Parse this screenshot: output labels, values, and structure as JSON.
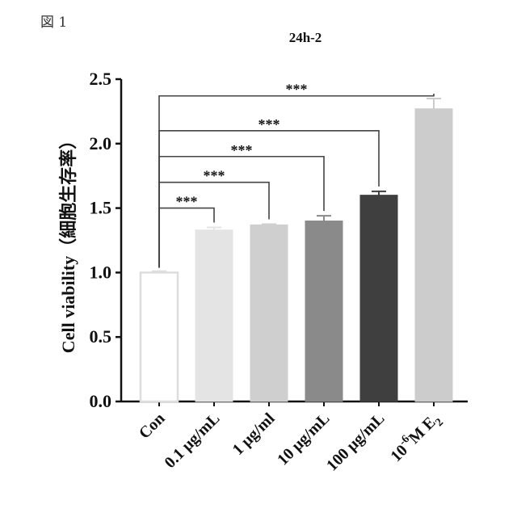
{
  "figure_label": "図 1",
  "chart_data": {
    "type": "bar",
    "title": "24h-2",
    "ylabel": "Cell viability（細胞生存率）",
    "xlabel": "",
    "ylim": [
      0,
      2.5
    ],
    "yticks": [
      "0.0",
      "0.5",
      "1.0",
      "1.5",
      "2.0",
      "2.5"
    ],
    "categories": [
      {
        "base": "Con"
      },
      {
        "base": "0.1 μg/mL"
      },
      {
        "base": "1 μg/ml"
      },
      {
        "base": "10 μg/mL"
      },
      {
        "base": "100 μg/mL"
      },
      {
        "base": "10",
        "sup": "-6",
        "mid": "M E",
        "sub": "2"
      }
    ],
    "values": [
      1.0,
      1.33,
      1.37,
      1.4,
      1.6,
      2.27
    ],
    "errors": [
      0.01,
      0.02,
      0.005,
      0.04,
      0.03,
      0.08
    ],
    "colors": [
      "#ffffff",
      "#e4e4e4",
      "#cfcfcf",
      "#8a8a8a",
      "#3f3f3f",
      "#cccccc"
    ],
    "significance": [
      {
        "from": 0,
        "to": 1,
        "label": "***"
      },
      {
        "from": 0,
        "to": 2,
        "label": "***"
      },
      {
        "from": 0,
        "to": 3,
        "label": "***"
      },
      {
        "from": 0,
        "to": 4,
        "label": "***"
      },
      {
        "from": 0,
        "to": 5,
        "label": "***"
      }
    ]
  }
}
